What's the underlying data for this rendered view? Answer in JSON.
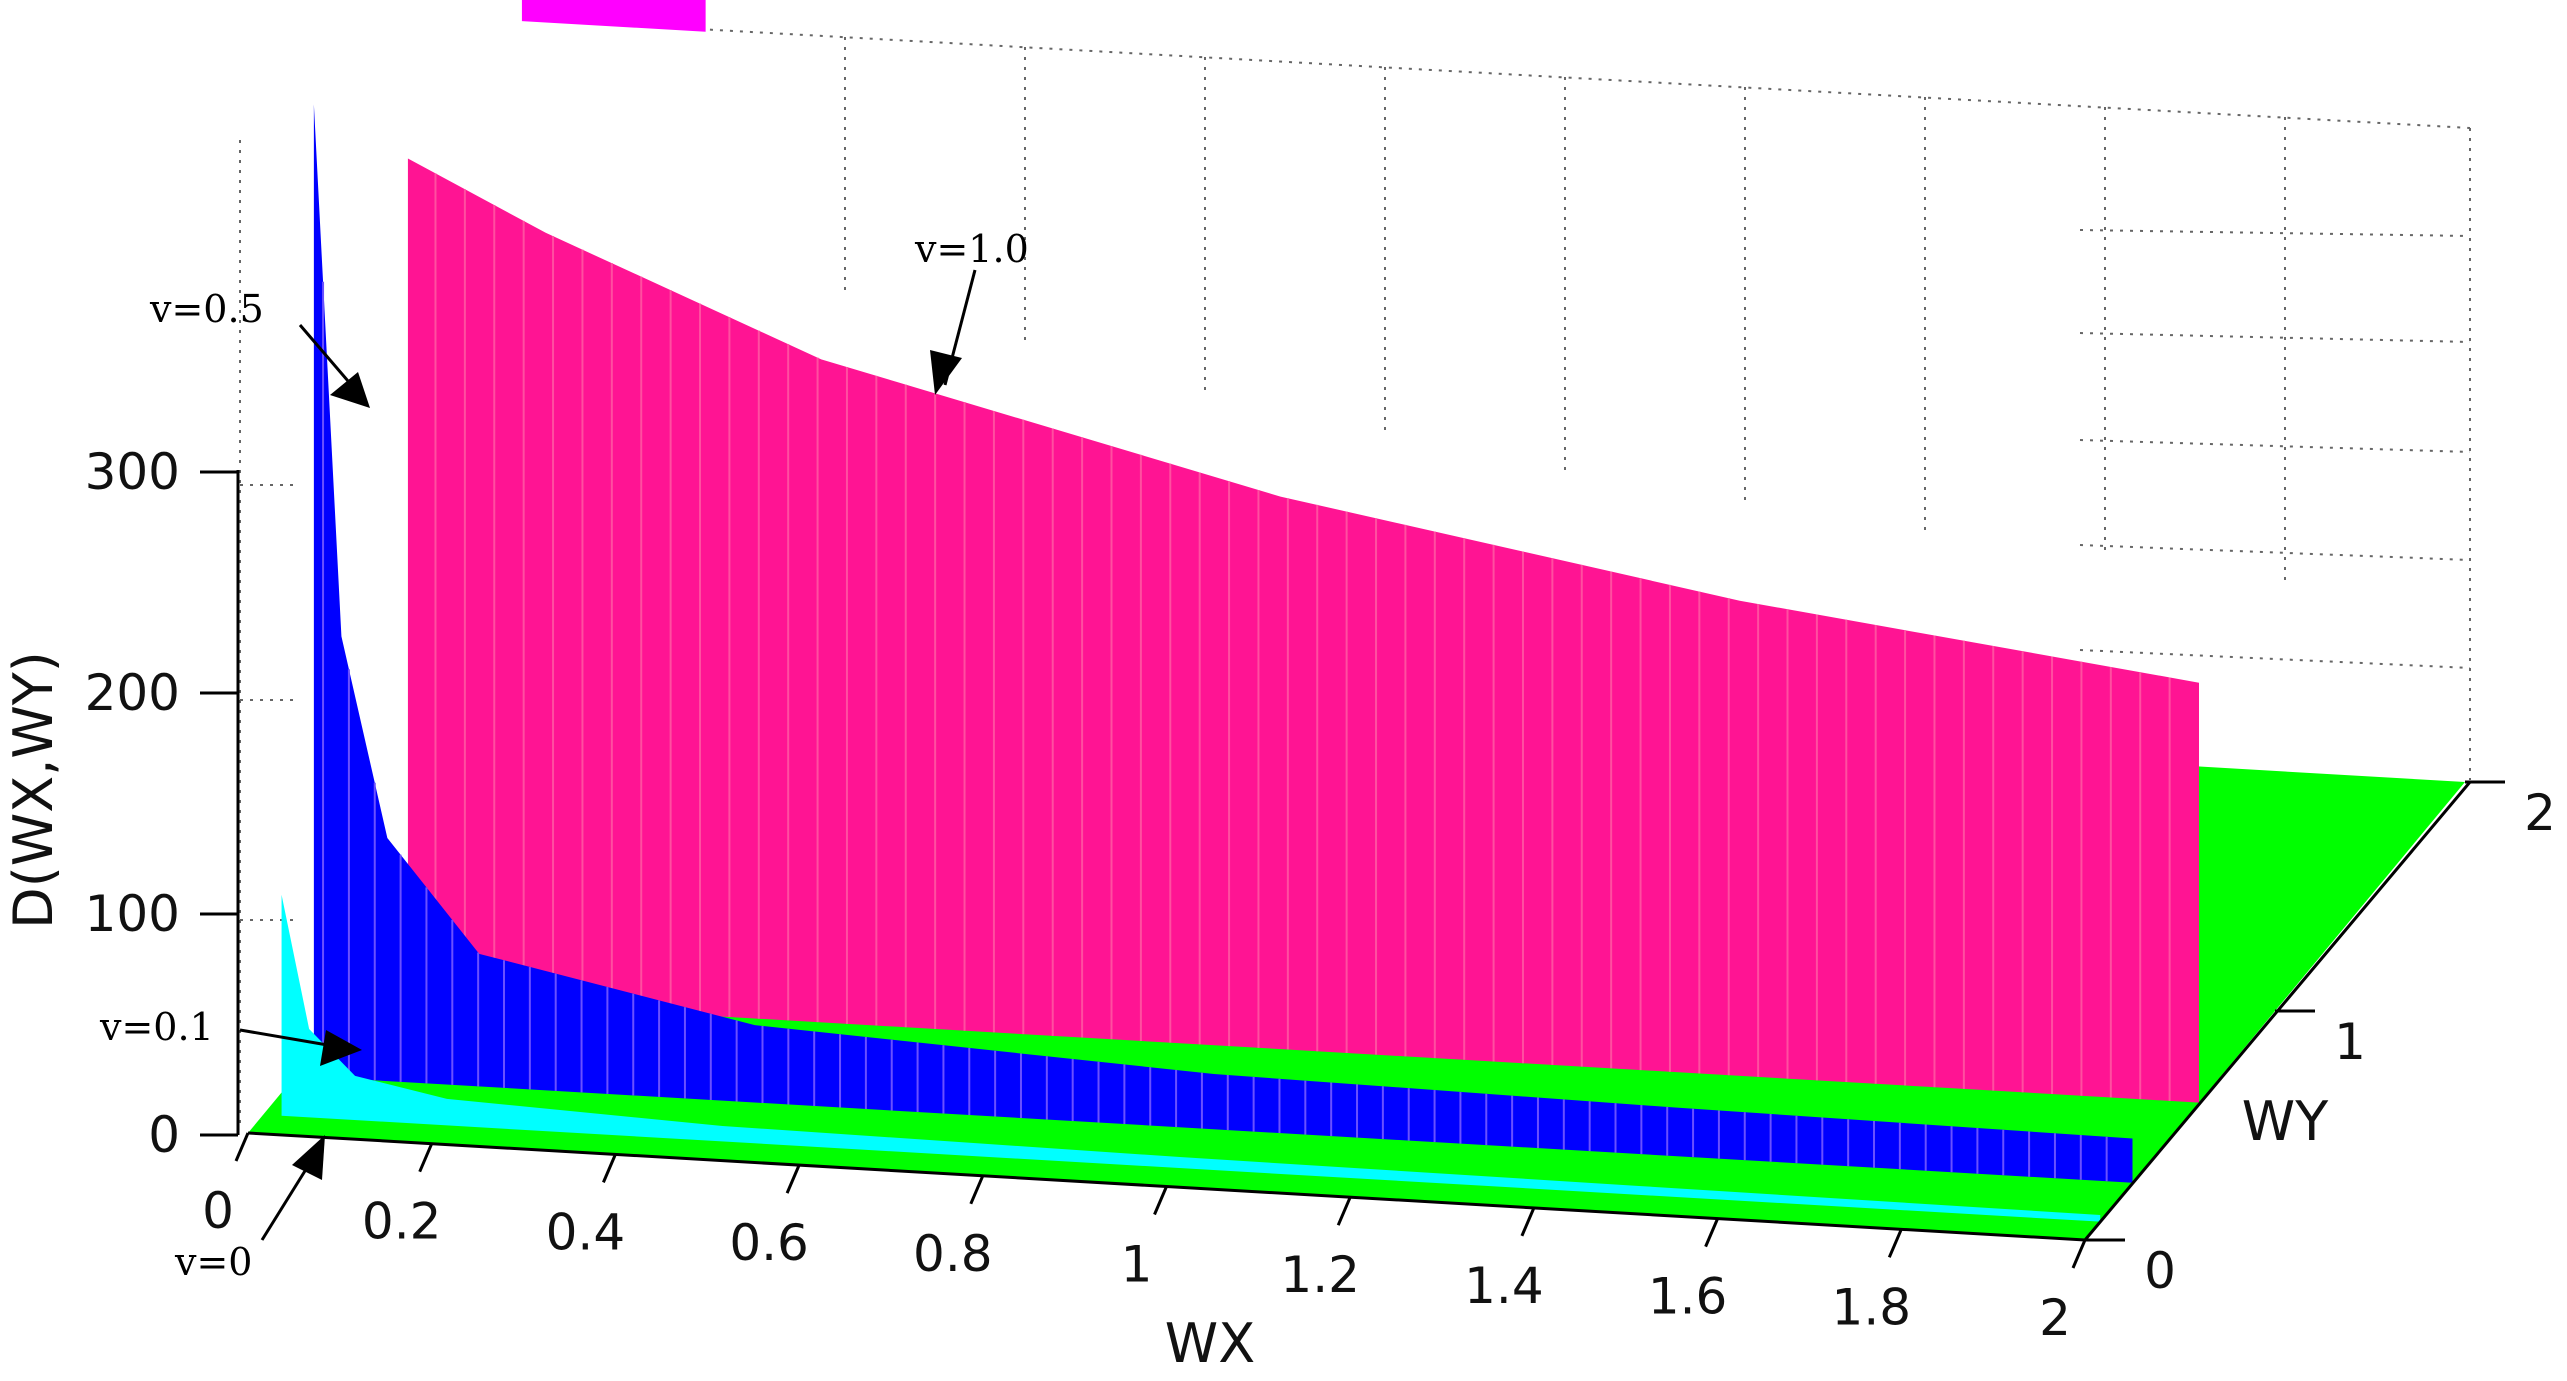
{
  "chart_data": {
    "type": "surface",
    "title": "",
    "xlabel": "WX",
    "ylabel": "WY",
    "zlabel": "D(WX,WY)",
    "xlim": [
      0,
      2
    ],
    "ylim": [
      0,
      2
    ],
    "zlim": [
      0,
      400
    ],
    "grid": true,
    "x_ticks": [
      "0",
      "0.2",
      "0.4",
      "0.6",
      "0.8",
      "1",
      "1.2",
      "1.4",
      "1.6",
      "1.8",
      "2"
    ],
    "y_ticks": [
      "0",
      "1",
      "2"
    ],
    "z_ticks": [
      "0",
      "100",
      "200",
      "300"
    ],
    "series": [
      {
        "name": "v=0",
        "color": "#00ff00",
        "surface": "flat plane at D = 0 over WX, WY in [0, 2]",
        "x": [
          0.05,
          0.1,
          0.2,
          0.5,
          1.0,
          1.5,
          2.0
        ],
        "y": [
          0,
          0,
          0,
          0,
          0,
          0,
          0
        ]
      },
      {
        "name": "v=0.1",
        "color": "#00ffff",
        "x": [
          0.02,
          0.05,
          0.1,
          0.2,
          0.5,
          1.0,
          1.5,
          2.0
        ],
        "y": [
          100,
          40,
          20,
          12,
          7,
          5,
          4,
          3
        ]
      },
      {
        "name": "v=0.5",
        "color": "#0000ff",
        "x": [
          0.02,
          0.05,
          0.1,
          0.2,
          0.5,
          1.0,
          1.5,
          2.0
        ],
        "y": [
          440,
          200,
          110,
          60,
          35,
          25,
          22,
          20
        ]
      },
      {
        "name": "v=1.0",
        "color": "#ff1493",
        "x": [
          0.05,
          0.1,
          0.2,
          0.5,
          1.0,
          1.5,
          2.0
        ],
        "y": [
          380,
          370,
          350,
          300,
          250,
          215,
          190
        ]
      }
    ],
    "annotations": [
      "v=1.0",
      "v=0.5",
      "v=0.1",
      "v=0"
    ]
  }
}
